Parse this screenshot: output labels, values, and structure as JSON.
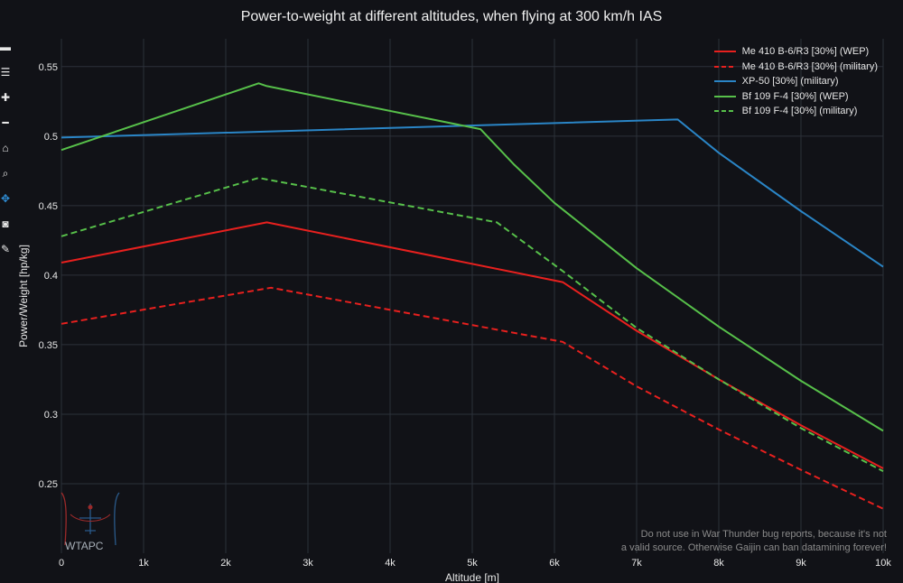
{
  "chart_data": {
    "type": "line",
    "title": "Power-to-weight at different altitudes, when flying at 300 km/h IAS",
    "xlabel": "Altitude [m]",
    "ylabel": "Power/Weight [hp/kg]",
    "xlim": [
      0,
      10000
    ],
    "ylim": [
      0.2,
      0.57
    ],
    "xticks": [
      0,
      1000,
      2000,
      3000,
      4000,
      5000,
      6000,
      7000,
      8000,
      9000,
      10000
    ],
    "xtick_labels": [
      "0",
      "1k",
      "2k",
      "3k",
      "4k",
      "5k",
      "6k",
      "7k",
      "8k",
      "9k",
      "10k"
    ],
    "yticks": [
      0.25,
      0.3,
      0.35,
      0.4,
      0.45,
      0.5,
      0.55
    ],
    "ytick_labels": [
      "0.25",
      "0.3",
      "0.35",
      "0.4",
      "0.45",
      "0.5",
      "0.55"
    ],
    "grid": true,
    "legend_position": "top-right",
    "series": [
      {
        "name": "Me 410 B-6/R3 [30%] (WEP)",
        "color": "#e8201e",
        "dash": "solid",
        "x": [
          0,
          2500,
          6100,
          7000,
          8000,
          9000,
          10000
        ],
        "y": [
          0.409,
          0.438,
          0.395,
          0.36,
          0.325,
          0.292,
          0.261
        ]
      },
      {
        "name": "Me 410 B-6/R3 [30%] (military)",
        "color": "#e8201e",
        "dash": "dashed",
        "x": [
          0,
          2550,
          6100,
          7000,
          8000,
          9000,
          10000
        ],
        "y": [
          0.365,
          0.391,
          0.352,
          0.32,
          0.289,
          0.26,
          0.232
        ]
      },
      {
        "name": "XP-50 [30%] (military)",
        "color": "#2a85c6",
        "dash": "solid",
        "x": [
          0,
          7500,
          8000,
          9000,
          10000
        ],
        "y": [
          0.499,
          0.512,
          0.488,
          0.446,
          0.406
        ]
      },
      {
        "name": "Bf 109 F-4 [30%] (WEP)",
        "color": "#57c04a",
        "dash": "solid",
        "x": [
          0,
          2400,
          2500,
          5100,
          5500,
          6000,
          7000,
          8000,
          9000,
          10000
        ],
        "y": [
          0.49,
          0.538,
          0.536,
          0.505,
          0.48,
          0.452,
          0.405,
          0.363,
          0.324,
          0.288
        ]
      },
      {
        "name": "Bf 109 F-4 [30%] (military)",
        "color": "#57c04a",
        "dash": "dashed",
        "x": [
          0,
          2400,
          5300,
          6100,
          7000,
          8000,
          9000,
          10000
        ],
        "y": [
          0.428,
          0.47,
          0.438,
          0.403,
          0.362,
          0.325,
          0.29,
          0.259
        ]
      }
    ]
  },
  "watermark": {
    "line1": "Do not use in War Thunder bug reports, because it's not",
    "line2": "a valid source. Otherwise Gaijin can ban datamining forever!"
  },
  "logo_text": "WTAPC",
  "modebar": [
    {
      "icon": "download-plot-icon",
      "glyph": "▬"
    },
    {
      "icon": "compare-data-icon",
      "glyph": "☰"
    },
    {
      "icon": "zoom-in-icon",
      "glyph": "✚"
    },
    {
      "icon": "zoom-out-icon",
      "glyph": "━"
    },
    {
      "icon": "reset-axes-icon",
      "glyph": "⌂"
    },
    {
      "icon": "zoom-icon",
      "glyph": "⌕"
    },
    {
      "icon": "pan-icon",
      "glyph": "✥"
    },
    {
      "icon": "camera-icon",
      "glyph": "◙"
    },
    {
      "icon": "pencil-icon",
      "glyph": "✎"
    }
  ]
}
